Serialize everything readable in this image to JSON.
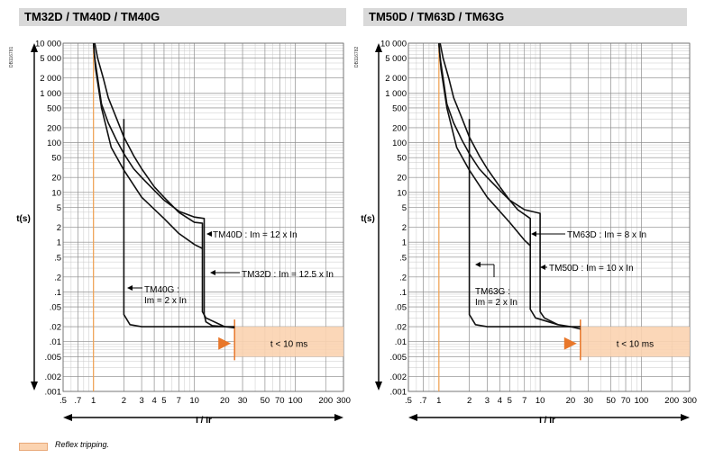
{
  "headers": [
    "TM32D / TM40D / TM40G",
    "TM50D / TM63D / TM63G"
  ],
  "refs": [
    "DB116781",
    "DB116782"
  ],
  "legend": {
    "label": "Reflex tripping.",
    "color": "#fbd3b0"
  },
  "chart_data": [
    {
      "type": "line",
      "title": "TM32D / TM40D / TM40G",
      "xlabel": "I / Ir",
      "ylabel": "t(s)",
      "xscale": "log",
      "yscale": "log",
      "xlim": [
        0.5,
        300
      ],
      "ylim": [
        0.001,
        10000
      ],
      "xticks": [
        ".5",
        ".7",
        "1",
        "2",
        "3",
        "4",
        "5",
        "7",
        "10",
        "20",
        "30",
        "50",
        "70",
        "100",
        "200",
        "300"
      ],
      "yticks": [
        "10 000",
        "5 000",
        "2 000",
        "1 000",
        "500",
        "200",
        "100",
        "50",
        "20",
        "10",
        "5",
        "2",
        "1",
        ".5",
        ".2",
        ".1",
        ".05",
        ".02",
        ".01",
        ".005",
        ".002",
        ".001"
      ],
      "series": [
        {
          "values": [
            [
              1.0,
              10000
            ],
            [
              1.03,
              5000
            ],
            [
              1.1,
              2000
            ],
            [
              1.2,
              600
            ],
            [
              1.4,
              250
            ],
            [
              1.7,
              110
            ],
            [
              2.0,
              60
            ],
            [
              2.5,
              30
            ],
            [
              3,
              20
            ],
            [
              4,
              11
            ],
            [
              5,
              7
            ],
            [
              7,
              4.2
            ],
            [
              10,
              3.2
            ],
            [
              12.5,
              3.0
            ],
            [
              12.5,
              0.035
            ],
            [
              13,
              0.025
            ],
            [
              15,
              0.021
            ],
            [
              20,
              0.02
            ],
            [
              25,
              0.019
            ]
          ]
        },
        {
          "values": [
            [
              1.03,
              10000
            ],
            [
              1.1,
              5000
            ],
            [
              1.25,
              2000
            ],
            [
              1.4,
              800
            ],
            [
              1.7,
              300
            ],
            [
              2.0,
              130
            ],
            [
              2.5,
              55
            ],
            [
              3,
              30
            ],
            [
              4,
              13
            ],
            [
              5,
              8
            ],
            [
              7,
              4
            ],
            [
              10,
              2.5
            ],
            [
              12,
              2.4
            ],
            [
              12,
              0.04
            ],
            [
              13,
              0.03
            ],
            [
              20,
              0.02
            ]
          ]
        },
        {
          "values": [
            [
              1.0,
              10000
            ],
            [
              1.05,
              3000
            ],
            [
              1.2,
              500
            ],
            [
              1.5,
              80
            ],
            [
              2.0,
              28
            ],
            [
              3,
              8
            ],
            [
              5,
              3
            ],
            [
              7,
              1.5
            ],
            [
              10,
              0.9
            ],
            [
              12,
              0.75
            ]
          ]
        },
        {
          "values": [
            [
              2,
              300
            ],
            [
              2,
              0.035
            ],
            [
              2.3,
              0.022
            ],
            [
              3,
              0.02
            ],
            [
              25,
              0.02
            ]
          ]
        }
      ],
      "annotations": [
        "TM40D : Im = 12 x In",
        "TM32D : Im = 12.5 x In",
        "TM40G :",
        "Im = 2 x In"
      ],
      "reflex_zone": {
        "x_from": 25,
        "x_to": 300,
        "y_from": 0.005,
        "y_to": 0.02,
        "label": "t < 10 ms"
      }
    },
    {
      "type": "line",
      "title": "TM50D / TM63D / TM63G",
      "xlabel": "I / Ir",
      "ylabel": "t(s)",
      "xscale": "log",
      "yscale": "log",
      "xlim": [
        0.5,
        300
      ],
      "ylim": [
        0.001,
        10000
      ],
      "xticks": [
        ".5",
        ".7",
        "1",
        "2",
        "3",
        "4",
        "5",
        "7",
        "10",
        "20",
        "30",
        "50",
        "70",
        "100",
        "200",
        "300"
      ],
      "yticks": [
        "10 000",
        "5 000",
        "2 000",
        "1 000",
        "500",
        "200",
        "100",
        "50",
        "20",
        "10",
        "5",
        "2",
        "1",
        ".5",
        ".2",
        ".1",
        ".05",
        ".02",
        ".01",
        ".005",
        ".002",
        ".001"
      ],
      "series": [
        {
          "values": [
            [
              1.0,
              10000
            ],
            [
              1.03,
              5000
            ],
            [
              1.1,
              2000
            ],
            [
              1.2,
              600
            ],
            [
              1.4,
              250
            ],
            [
              1.7,
              110
            ],
            [
              2.0,
              60
            ],
            [
              2.5,
              30
            ],
            [
              3,
              20
            ],
            [
              4,
              11
            ],
            [
              5,
              7
            ],
            [
              7,
              4.5
            ],
            [
              10,
              3.8
            ],
            [
              10,
              0.04
            ],
            [
              11,
              0.03
            ],
            [
              15,
              0.022
            ],
            [
              20,
              0.02
            ],
            [
              25,
              0.018
            ]
          ]
        },
        {
          "values": [
            [
              1.03,
              10000
            ],
            [
              1.1,
              5000
            ],
            [
              1.25,
              2000
            ],
            [
              1.4,
              800
            ],
            [
              1.7,
              300
            ],
            [
              2.0,
              130
            ],
            [
              2.5,
              55
            ],
            [
              3,
              30
            ],
            [
              4,
              13
            ],
            [
              5,
              7
            ],
            [
              6,
              4.5
            ],
            [
              8,
              3.0
            ],
            [
              8,
              0.045
            ],
            [
              9,
              0.03
            ],
            [
              15,
              0.022
            ]
          ]
        },
        {
          "values": [
            [
              1.0,
              10000
            ],
            [
              1.05,
              3000
            ],
            [
              1.2,
              500
            ],
            [
              1.5,
              80
            ],
            [
              2.0,
              28
            ],
            [
              3,
              8
            ],
            [
              5,
              2.5
            ],
            [
              7,
              1.1
            ],
            [
              8,
              0.85
            ]
          ]
        },
        {
          "values": [
            [
              2,
              300
            ],
            [
              2,
              0.035
            ],
            [
              2.3,
              0.022
            ],
            [
              3,
              0.02
            ],
            [
              25,
              0.02
            ]
          ]
        }
      ],
      "annotations": [
        "TM63D : Im = 8 x In",
        "TM50D : Im = 10 x In",
        "TM63G :",
        "Im = 2 x In"
      ],
      "reflex_zone": {
        "x_from": 25,
        "x_to": 300,
        "y_from": 0.005,
        "y_to": 0.02,
        "label": "t < 10 ms"
      }
    }
  ]
}
